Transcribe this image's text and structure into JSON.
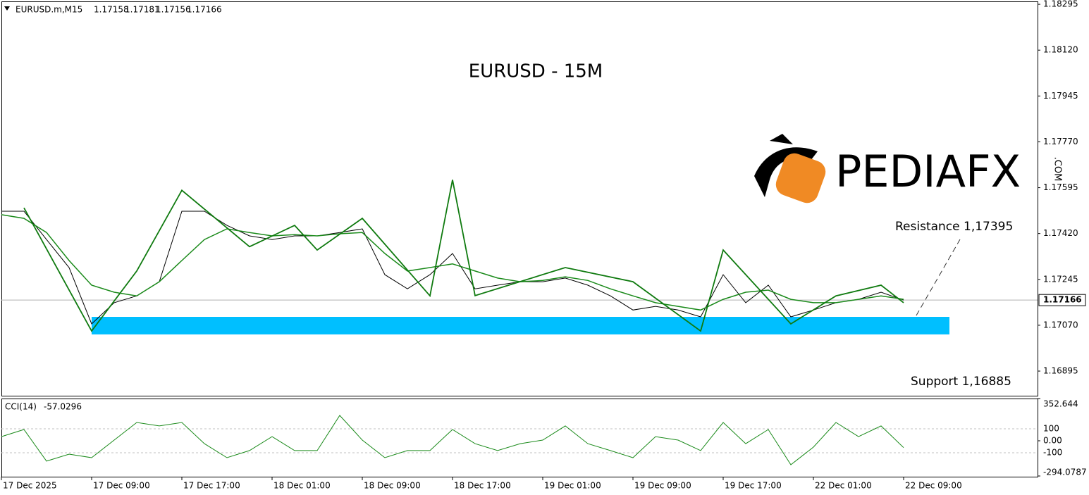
{
  "chart_data": {
    "type": "line",
    "header": {
      "symbol": "EURUSD.m,M15",
      "ohlc": [
        1.17158,
        1.17181,
        1.17156,
        1.17166
      ]
    },
    "title": "EURUSD - 15M",
    "categories": [
      "17 Dec 01:00",
      "17 Dec 03:00",
      "17 Dec 05:00",
      "17 Dec 07:00",
      "17 Dec 09:00",
      "17 Dec 11:00",
      "17 Dec 13:00",
      "17 Dec 15:00",
      "17 Dec 17:00",
      "17 Dec 19:00",
      "17 Dec 21:00",
      "17 Dec 23:00",
      "18 Dec 01:00",
      "18 Dec 03:00",
      "18 Dec 05:00",
      "18 Dec 07:00",
      "18 Dec 09:00",
      "18 Dec 11:00",
      "18 Dec 13:00",
      "18 Dec 15:00",
      "18 Dec 17:00",
      "18 Dec 19:00",
      "18 Dec 21:00",
      "18 Dec 23:00",
      "19 Dec 01:00",
      "19 Dec 03:00",
      "19 Dec 05:00",
      "19 Dec 07:00",
      "19 Dec 09:00",
      "19 Dec 11:00",
      "19 Dec 13:00",
      "19 Dec 15:00",
      "19 Dec 17:00",
      "19 Dec 19:00",
      "19 Dec 21:00",
      "19 Dec 23:00",
      "22 Dec 01:00",
      "22 Dec 03:00",
      "22 Dec 05:00",
      "22 Dec 07:00",
      "22 Dec 09:00"
    ],
    "xticks": [
      {
        "value": "17 Dec 01:00",
        "label": "17 Dec 2025"
      },
      "17 Dec 09:00",
      "17 Dec 17:00",
      "18 Dec 01:00",
      "18 Dec 09:00",
      "18 Dec 17:00",
      "19 Dec 01:00",
      "19 Dec 09:00",
      "19 Dec 17:00",
      "22 Dec 01:00",
      "22 Dec 09:00"
    ],
    "ylim": [
      1.16801,
      1.18306
    ],
    "yticks": [
      1.18295,
      {
        "value": 1.1812,
        "label": "1.18120"
      },
      1.17945,
      {
        "value": 1.1777,
        "label": "1.17770"
      },
      1.17595,
      {
        "value": 1.1742,
        "label": "1.17420"
      },
      1.17245,
      {
        "value": 1.1707,
        "label": "1.17070"
      },
      1.16895
    ],
    "last_price": 1.17166,
    "series": [
      {
        "color": "#000000",
        "values": [
          1.17505,
          1.17505,
          1.17397,
          1.1729,
          1.17075,
          1.17156,
          1.17182,
          1.17236,
          1.17505,
          1.17505,
          1.17451,
          1.17411,
          1.17397,
          1.17411,
          1.17411,
          1.17424,
          1.17438,
          1.17263,
          1.17209,
          1.17263,
          1.17344,
          1.17209,
          1.17223,
          1.17236,
          1.17236,
          1.1725,
          1.17223,
          1.17182,
          1.17128,
          1.17142,
          1.17128,
          1.17102,
          1.17263,
          1.17156,
          1.17223,
          1.17102,
          1.17128,
          1.17156,
          1.17169,
          1.17196,
          1.17166
        ]
      },
      {
        "color": "#1a8a1a",
        "values": [
          1.17492,
          1.17478,
          1.17424,
          1.17317,
          1.17223,
          1.17196,
          1.17182,
          1.17236,
          1.17317,
          1.17397,
          1.17438,
          1.17424,
          1.17411,
          1.17416,
          1.17411,
          1.17419,
          1.17424,
          1.17344,
          1.17277,
          1.1729,
          1.17304,
          1.17277,
          1.1725,
          1.17236,
          1.17241,
          1.17255,
          1.17241,
          1.17209,
          1.17182,
          1.17156,
          1.17142,
          1.17128,
          1.17169,
          1.17196,
          1.17204,
          1.17169,
          1.17156,
          1.17156,
          1.17169,
          1.17182,
          1.17169
        ]
      }
    ],
    "zigzag": {
      "color": "#0f7a0f",
      "categories": [
        "17 Dec 03:00",
        "17 Dec 09:00",
        "17 Dec 13:00",
        "17 Dec 17:00",
        "17 Dec 23:00",
        "18 Dec 03:00",
        "18 Dec 05:00",
        "18 Dec 09:00",
        "18 Dec 15:00",
        "18 Dec 17:00",
        "18 Dec 19:00",
        "19 Dec 03:00",
        "19 Dec 09:00",
        "19 Dec 15:00",
        "19 Dec 17:00",
        "19 Dec 23:00",
        "22 Dec 03:00",
        "22 Dec 07:00",
        "22 Dec 09:00"
      ],
      "values": [
        1.17518,
        1.17048,
        1.17277,
        1.17585,
        1.1737,
        1.17451,
        1.17357,
        1.17478,
        1.17182,
        1.17625,
        1.17183,
        1.1729,
        1.17236,
        1.17048,
        1.17357,
        1.17075,
        1.17182,
        1.17223,
        1.17156
      ]
    },
    "zone": {
      "color": "#00bfff",
      "from": 1.17035,
      "to": 1.17102
    },
    "annotations": [
      {
        "text": "Resistance 1,17395",
        "color": "#0a8a0a"
      },
      {
        "text": "Support 1,16885",
        "color": "#ff0000"
      }
    ],
    "watermark": {
      "text": "PEDIAFX",
      "suffix": ".COM"
    },
    "indicator": {
      "type": "line",
      "label": "CCI(14)",
      "current": -57.0296,
      "color": "#1a8a1a",
      "ylim": [
        -300,
        353
      ],
      "yticks": [
        352.644,
        100,
        {
          "value": 0,
          "label": "0.00"
        },
        -100,
        -294.0787
      ],
      "values": [
        35,
        94,
        -170,
        -112,
        -141,
        6,
        153,
        124,
        153,
        -24,
        -141,
        -82,
        35,
        -82,
        -82,
        212,
        6,
        -141,
        -82,
        -82,
        94,
        -24,
        -82,
        -24,
        6,
        124,
        -24,
        -82,
        -141,
        35,
        6,
        -82,
        153,
        -24,
        94,
        -200,
        -53,
        153,
        35,
        124,
        -57
      ]
    }
  }
}
